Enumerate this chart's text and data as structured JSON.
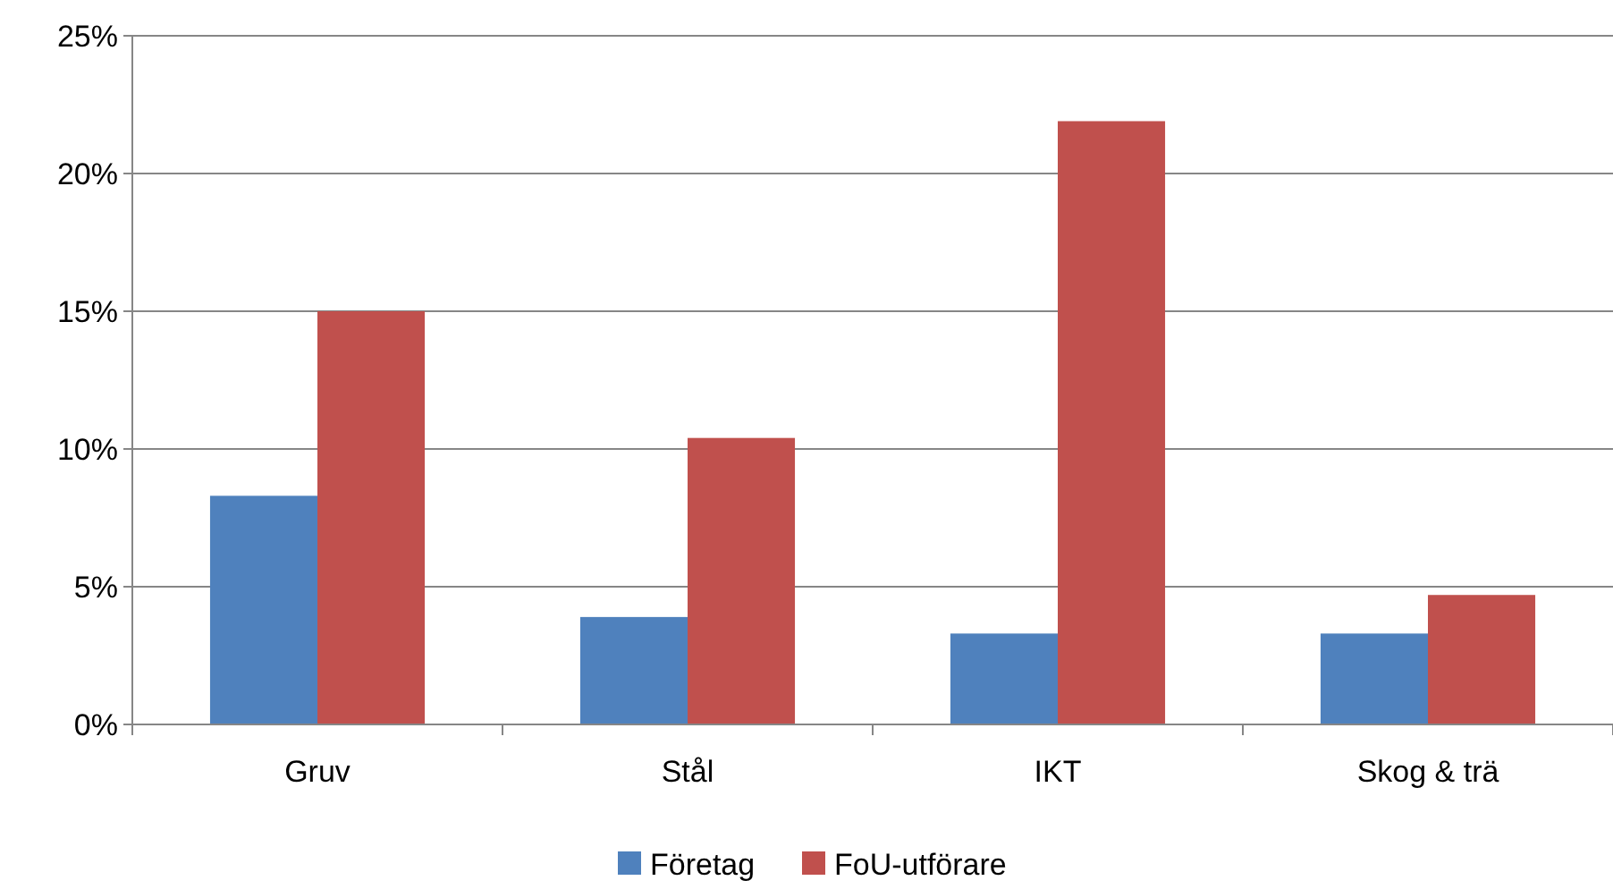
{
  "chart_data": {
    "type": "bar",
    "categories": [
      "Gruv",
      "Stål",
      "IKT",
      "Skog & trä"
    ],
    "series": [
      {
        "name": "Företag",
        "color": "#4f81bd",
        "values": [
          8.3,
          3.9,
          3.3,
          3.3
        ]
      },
      {
        "name": "FoU-utförare",
        "color": "#c0504d",
        "values": [
          15.0,
          10.4,
          21.9,
          4.7
        ]
      }
    ],
    "ylim": [
      0,
      25
    ],
    "yticks": [
      {
        "value": 0,
        "label": "0%"
      },
      {
        "value": 5,
        "label": "5%"
      },
      {
        "value": 10,
        "label": "10%"
      },
      {
        "value": 15,
        "label": "15%"
      },
      {
        "value": 20,
        "label": "20%"
      },
      {
        "value": 25,
        "label": "25%"
      }
    ],
    "grid": "y",
    "legend": "bottom"
  }
}
